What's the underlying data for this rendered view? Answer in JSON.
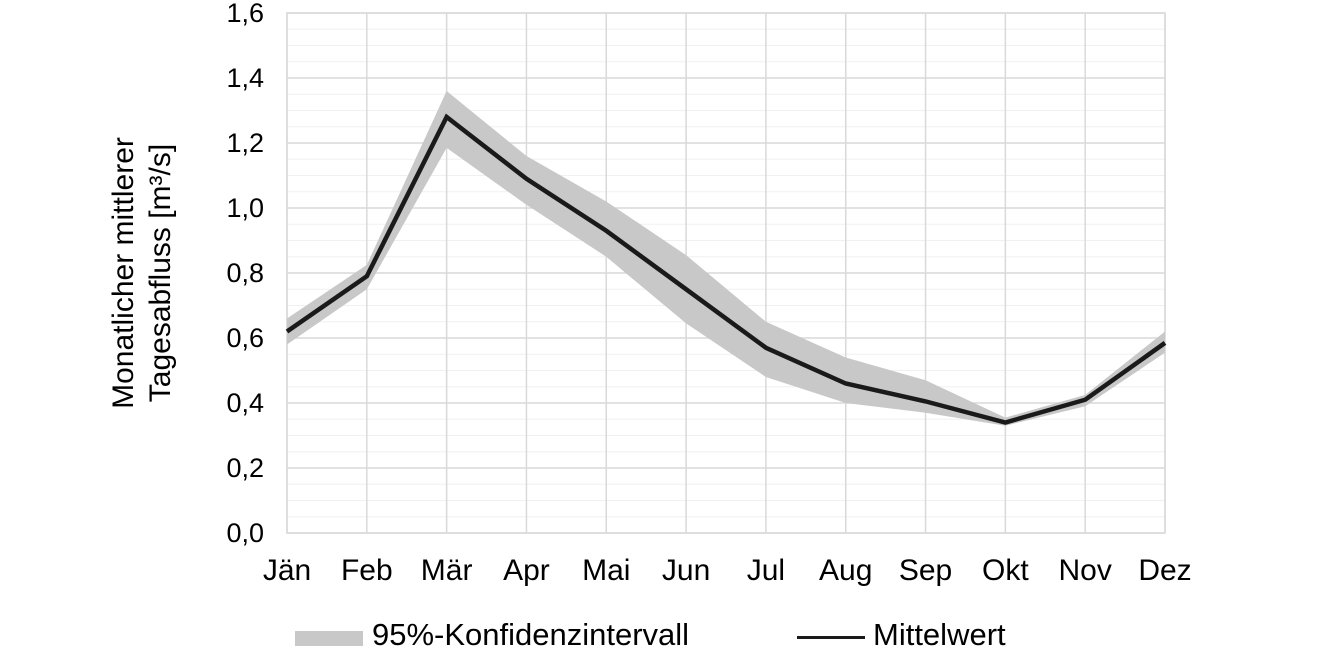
{
  "chart_data": {
    "type": "line",
    "title": "",
    "categories": [
      "Jän",
      "Feb",
      "Mär",
      "Apr",
      "Mai",
      "Jun",
      "Jul",
      "Aug",
      "Sep",
      "Okt",
      "Nov",
      "Dez"
    ],
    "series": [
      {
        "name": "Mittelwert",
        "type": "line",
        "color": "#1a1a1a",
        "values": [
          0.62,
          0.79,
          1.28,
          1.09,
          0.93,
          0.75,
          0.57,
          0.46,
          0.405,
          0.34,
          0.41,
          0.585
        ]
      },
      {
        "name": "95%-Konfidenzintervall",
        "type": "confidence-band",
        "color": "#c8c8c8",
        "lower": [
          0.58,
          0.75,
          1.185,
          1.01,
          0.85,
          0.645,
          0.48,
          0.4,
          0.37,
          0.33,
          0.39,
          0.555
        ],
        "upper": [
          0.66,
          0.825,
          1.36,
          1.16,
          1.02,
          0.855,
          0.65,
          0.54,
          0.47,
          0.355,
          0.425,
          0.62
        ]
      }
    ],
    "xlabel": "",
    "ylabel_line1": "Monatlicher mittlerer",
    "ylabel_line2": "Tagesabfluss [m³/s]",
    "ylim": [
      0.0,
      1.6
    ],
    "y_major_step": 0.2,
    "y_minor_step": 0.05,
    "y_tick_labels": [
      "0,0",
      "0,2",
      "0,4",
      "0,6",
      "0,8",
      "1,0",
      "1,2",
      "1,4",
      "1,6"
    ],
    "decimal_separator": ",",
    "grid": {
      "major_color": "#d9d9d9",
      "minor_color": "#f0f0f0",
      "vertical_major": true,
      "border": true
    },
    "legend_position": "bottom",
    "legend": [
      {
        "label": "95%-Konfidenzintervall",
        "swatch": "band"
      },
      {
        "label": "Mittelwert",
        "swatch": "line"
      }
    ]
  }
}
